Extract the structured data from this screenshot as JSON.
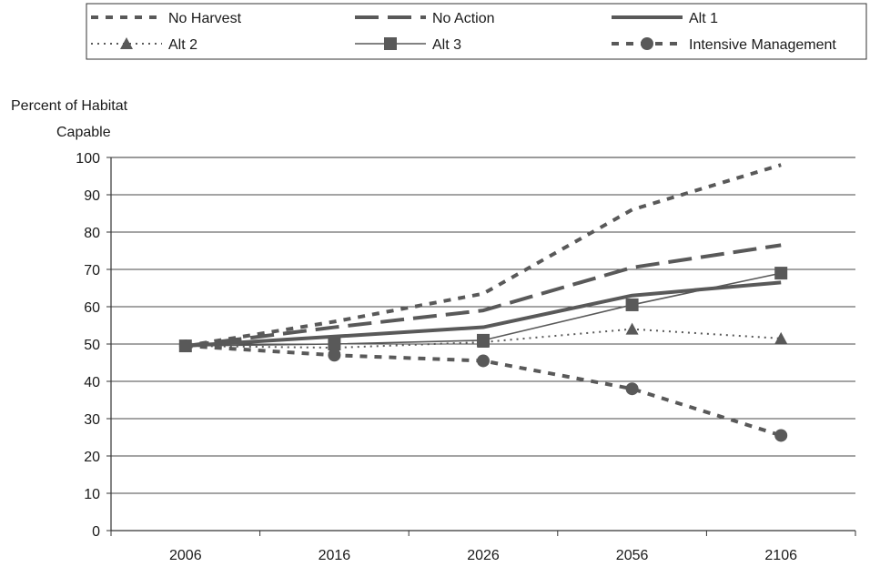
{
  "chart_data": {
    "type": "line",
    "title": "",
    "ylabel_line1": "Percent of Habitat",
    "ylabel_line2": "Capable",
    "xlabel": "",
    "categories": [
      "2006",
      "2016",
      "2026",
      "2056",
      "2106"
    ],
    "ylim": [
      0,
      100
    ],
    "yticks": [
      0,
      10,
      20,
      30,
      40,
      50,
      60,
      70,
      80,
      90,
      100
    ],
    "grid": true,
    "legend_position": "top",
    "series": [
      {
        "name": "No Harvest",
        "style": "short-dash",
        "marker": "none",
        "color": "#595959",
        "values": [
          49.5,
          56,
          63.5,
          86,
          98
        ]
      },
      {
        "name": "No Action",
        "style": "long-dash",
        "marker": "none",
        "color": "#595959",
        "values": [
          49.5,
          54.5,
          59,
          70.5,
          76.5
        ]
      },
      {
        "name": "Alt 1",
        "style": "solid-thick",
        "marker": "none",
        "color": "#595959",
        "values": [
          49.5,
          52,
          54.5,
          63,
          66.5
        ]
      },
      {
        "name": "Alt 2",
        "style": "dotted",
        "marker": "triangle",
        "color": "#595959",
        "values": [
          49.5,
          49,
          50.5,
          54,
          51.5
        ]
      },
      {
        "name": "Alt 3",
        "style": "solid-thin",
        "marker": "square",
        "color": "#595959",
        "values": [
          49.5,
          50,
          51,
          60.5,
          69
        ]
      },
      {
        "name": "Intensive Management",
        "style": "short-dash",
        "marker": "circle",
        "color": "#595959",
        "values": [
          49.5,
          47,
          45.5,
          38,
          25.5
        ]
      }
    ]
  }
}
